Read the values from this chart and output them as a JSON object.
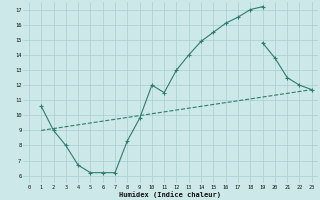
{
  "xlabel": "Humidex (Indice chaleur)",
  "bg_color": "#cce8e8",
  "line_color": "#2e7d6e",
  "grid_color": "#aacece",
  "xlim": [
    -0.5,
    23.5
  ],
  "ylim": [
    5.5,
    17.5
  ],
  "xticks": [
    0,
    1,
    2,
    3,
    4,
    5,
    6,
    7,
    8,
    9,
    10,
    11,
    12,
    13,
    14,
    15,
    16,
    17,
    18,
    19,
    20,
    21,
    22,
    23
  ],
  "yticks": [
    6,
    7,
    8,
    9,
    10,
    11,
    12,
    13,
    14,
    15,
    16,
    17
  ],
  "line1_x": [
    1,
    2,
    3,
    4,
    5,
    6,
    7,
    8,
    9,
    10,
    11,
    12,
    13,
    14,
    15,
    16,
    17,
    18,
    19
  ],
  "line1_y": [
    10.6,
    9.0,
    8.0,
    6.7,
    6.2,
    6.2,
    6.2,
    8.3,
    9.8,
    12.0,
    11.5,
    13.0,
    14.0,
    14.9,
    15.5,
    16.1,
    16.5,
    17.0,
    17.2
  ],
  "line2_x": [
    1,
    23
  ],
  "line2_y": [
    9.0,
    11.7
  ],
  "line3_x": [
    19,
    20,
    21,
    22,
    23
  ],
  "line3_y": [
    14.8,
    13.8,
    12.5,
    12.0,
    11.7
  ]
}
